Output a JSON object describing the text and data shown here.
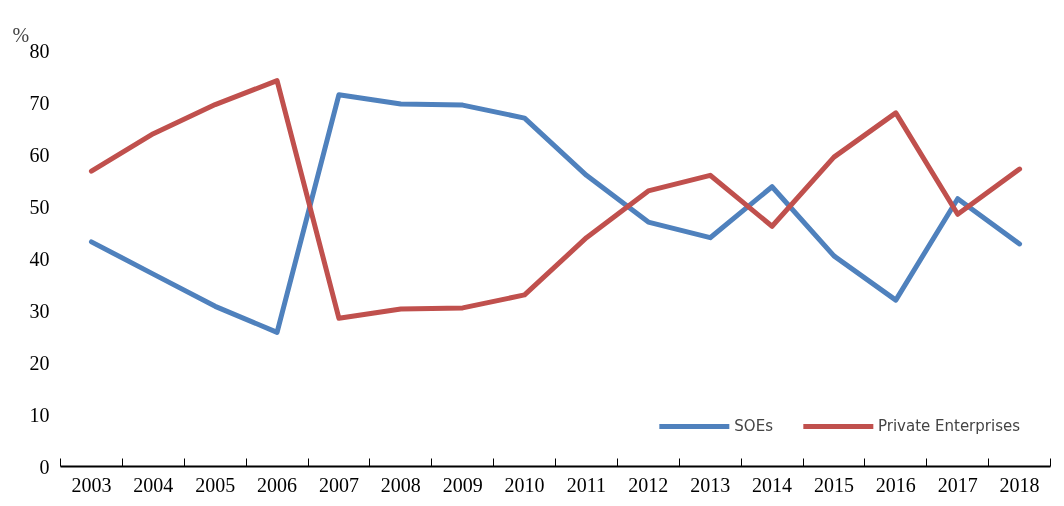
{
  "chart_data": {
    "type": "line",
    "ylabel": "%",
    "categories": [
      "2003",
      "2004",
      "2005",
      "2006",
      "2007",
      "2008",
      "2009",
      "2010",
      "2011",
      "2012",
      "2013",
      "2014",
      "2015",
      "2016",
      "2017",
      "2018"
    ],
    "series": [
      {
        "name": "SOEs",
        "color": "#4f81bd",
        "values": [
          43.2,
          37,
          30.8,
          25.8,
          71.5,
          69.7,
          69.5,
          67,
          56,
          47,
          44,
          53.8,
          40.5,
          32,
          51.5,
          42.8
        ]
      },
      {
        "name": "Private Enterprises",
        "color": "#c0504d",
        "values": [
          56.8,
          64,
          69.6,
          74.2,
          28.5,
          30.3,
          30.5,
          33,
          44,
          53,
          56,
          46.2,
          59.5,
          68,
          48.5,
          57.2
        ]
      }
    ],
    "ylim": [
      0,
      80
    ],
    "yticks": [
      0,
      10,
      20,
      30,
      40,
      50,
      60,
      70,
      80
    ],
    "grid": false,
    "legend": "bottom right",
    "marker": "none",
    "line_style": "solid"
  }
}
